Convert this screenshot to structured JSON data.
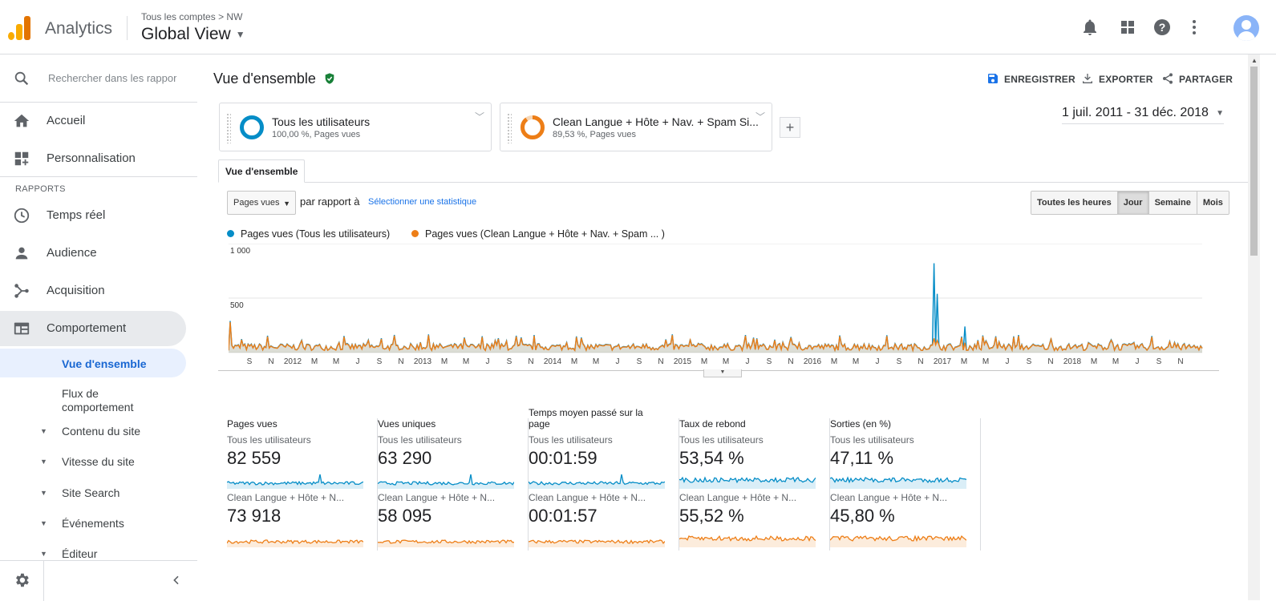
{
  "app": {
    "brand": "Analytics"
  },
  "header": {
    "breadcrumb_root": "Tous les comptes",
    "breadcrumb_sep": ">",
    "breadcrumb_account": "NW",
    "view_title": "Global View"
  },
  "sidebar": {
    "search_placeholder": "Rechercher dans les rapport",
    "items": [
      {
        "label": "Accueil",
        "icon": "home-icon"
      },
      {
        "label": "Personnalisation",
        "icon": "dashboard-icon"
      }
    ],
    "section_label": "RAPPORTS",
    "reports": [
      {
        "label": "Temps réel",
        "icon": "clock-icon"
      },
      {
        "label": "Audience",
        "icon": "person-icon"
      },
      {
        "label": "Acquisition",
        "icon": "acquisition-icon"
      },
      {
        "label": "Comportement",
        "icon": "behavior-icon"
      }
    ],
    "behavior_sub": {
      "overview": "Vue d'ensemble",
      "flow_line1": "Flux de",
      "flow_line2": "comportement",
      "content": "Contenu du site",
      "speed": "Vitesse du site",
      "site_search": "Site Search",
      "events": "Événements",
      "publisher": "Éditeur"
    }
  },
  "main": {
    "title": "Vue d'ensemble",
    "actions": {
      "save": "ENREGISTRER",
      "export": "EXPORTER",
      "share": "PARTAGER"
    },
    "segments": [
      {
        "name": "Tous les utilisateurs",
        "meta": "100,00 %, Pages vues",
        "color": "#058dc7"
      },
      {
        "name": "Clean Langue + Hôte + Nav. + Spam Si...",
        "meta": "89,53 %, Pages vues",
        "color": "#ed7e17"
      }
    ],
    "add_segment": "+",
    "date_range": "1 juil. 2011 - 31 déc. 2018",
    "tab": "Vue d'ensemble",
    "metric_select": "Pages vues",
    "vs_label": "par rapport à",
    "select_stat": "Sélectionner une statistique",
    "granularity": [
      "Toutes les heures",
      "Jour",
      "Semaine",
      "Mois"
    ],
    "granularity_selected": "Jour"
  },
  "chart_data": {
    "type": "line",
    "series": [
      {
        "name": "Pages vues (Tous les utilisateurs)",
        "color": "#058dc7"
      },
      {
        "name": "Pages vues (Clean Langue + Hôte + Nav. + Spam ...  )",
        "color": "#ed7e17"
      }
    ],
    "y_ticks": [
      "1 000",
      "500"
    ],
    "ylim": [
      0,
      1000
    ],
    "x_tick_labels": [
      "S",
      "N",
      "2012",
      "M",
      "M",
      "J",
      "S",
      "N",
      "2013",
      "M",
      "M",
      "J",
      "S",
      "N",
      "2014",
      "M",
      "M",
      "J",
      "S",
      "N",
      "2015",
      "M",
      "M",
      "J",
      "S",
      "N",
      "2016",
      "M",
      "M",
      "J",
      "S",
      "N",
      "2017",
      "M",
      "M",
      "J",
      "S",
      "N",
      "2018",
      "M",
      "M",
      "J",
      "S",
      "N"
    ],
    "xlim": [
      "2011-07-01",
      "2018-12-31"
    ],
    "approximate_peaks": [
      {
        "date": "2011-07-05",
        "all_users": 290,
        "clean": 280
      },
      {
        "date": "2016-12-05",
        "all_users": 820,
        "clean": 130
      },
      {
        "date": "2016-12-15",
        "all_users": 540,
        "clean": 110
      },
      {
        "date": "2017-03-01",
        "all_users": 240,
        "clean": 90
      }
    ],
    "typical_daily_range": [
      20,
      120
    ]
  },
  "tiles": [
    {
      "title": "Pages vues",
      "seg1": "Tous les utilisateurs",
      "val1": "82 559",
      "seg2": "Clean Langue + Hôte + N...",
      "val2": "73 918"
    },
    {
      "title": "Vues uniques",
      "seg1": "Tous les utilisateurs",
      "val1": "63 290",
      "seg2": "Clean Langue + Hôte + N...",
      "val2": "58 095"
    },
    {
      "title": "Temps moyen passé sur la page",
      "seg1": "Tous les utilisateurs",
      "val1": "00:01:59",
      "seg2": "Clean Langue + Hôte + N...",
      "val2": "00:01:57"
    },
    {
      "title": "Taux de rebond",
      "seg1": "Tous les utilisateurs",
      "val1": "53,54 %",
      "seg2": "Clean Langue + Hôte + N...",
      "val2": "55,52 %"
    },
    {
      "title": "Sorties (en %)",
      "seg1": "Tous les utilisateurs",
      "val1": "47,11 %",
      "seg2": "Clean Langue + Hôte + N...",
      "val2": "45,80 %"
    }
  ],
  "colors": {
    "blue": "#058dc7",
    "orange": "#ed7e17",
    "accent": "#1a73e8"
  }
}
